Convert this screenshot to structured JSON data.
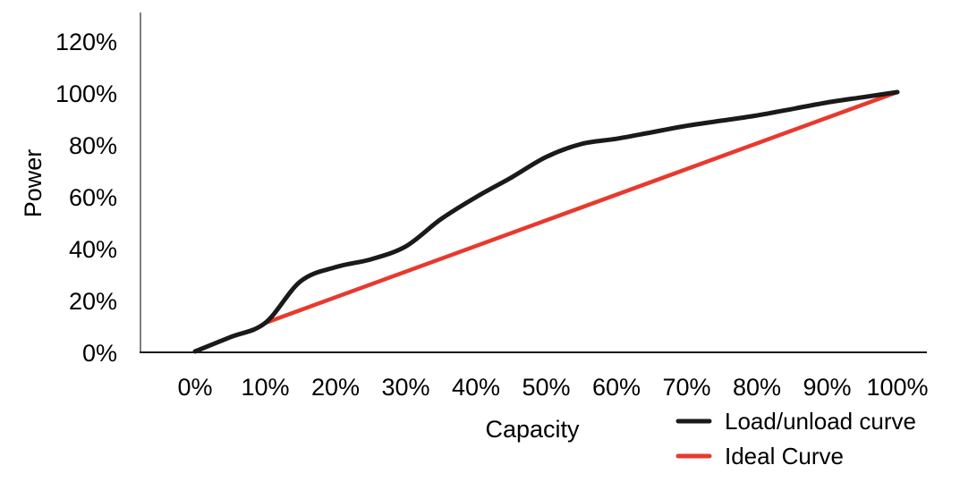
{
  "chart_data": {
    "type": "line",
    "title": "",
    "xlabel": "Capacity",
    "ylabel": "Power",
    "grid": false,
    "legend_position": "bottom-right",
    "x_axis": {
      "ticks": [
        0,
        10,
        20,
        30,
        40,
        50,
        60,
        70,
        80,
        90,
        100
      ],
      "tick_labels": [
        "0%",
        "10%",
        "20%",
        "30%",
        "40%",
        "50%",
        "60%",
        "70%",
        "80%",
        "90%",
        "100%"
      ],
      "range": [
        0,
        104
      ]
    },
    "y_axis": {
      "ticks": [
        0,
        20,
        40,
        60,
        80,
        100,
        120
      ],
      "tick_labels": [
        "0%",
        "20%",
        "40%",
        "60%",
        "80%",
        "100%",
        "120%"
      ],
      "range": [
        0,
        131
      ]
    },
    "series": [
      {
        "name": "Load/unload curve",
        "color": "#1a1a1a",
        "stroke_width": 5,
        "smooth": true,
        "points": [
          [
            0,
            0
          ],
          [
            5,
            5.5
          ],
          [
            10,
            11
          ],
          [
            15,
            27
          ],
          [
            20,
            32.5
          ],
          [
            25,
            35.5
          ],
          [
            30,
            40.5
          ],
          [
            35,
            51
          ],
          [
            40,
            59.5
          ],
          [
            45,
            67
          ],
          [
            50,
            75
          ],
          [
            55,
            80
          ],
          [
            60,
            82
          ],
          [
            65,
            84.5
          ],
          [
            70,
            87
          ],
          [
            75,
            89
          ],
          [
            80,
            91
          ],
          [
            85,
            93.5
          ],
          [
            90,
            96
          ],
          [
            95,
            98
          ],
          [
            100,
            100
          ]
        ]
      },
      {
        "name": "Ideal Curve",
        "color": "#e8392e",
        "stroke_width": 4.5,
        "smooth": false,
        "points": [
          [
            10,
            11
          ],
          [
            100,
            100
          ]
        ]
      }
    ],
    "axis_colors": {
      "y_axis_line": "#808080",
      "x_axis_line": "#1a1a1a"
    }
  }
}
